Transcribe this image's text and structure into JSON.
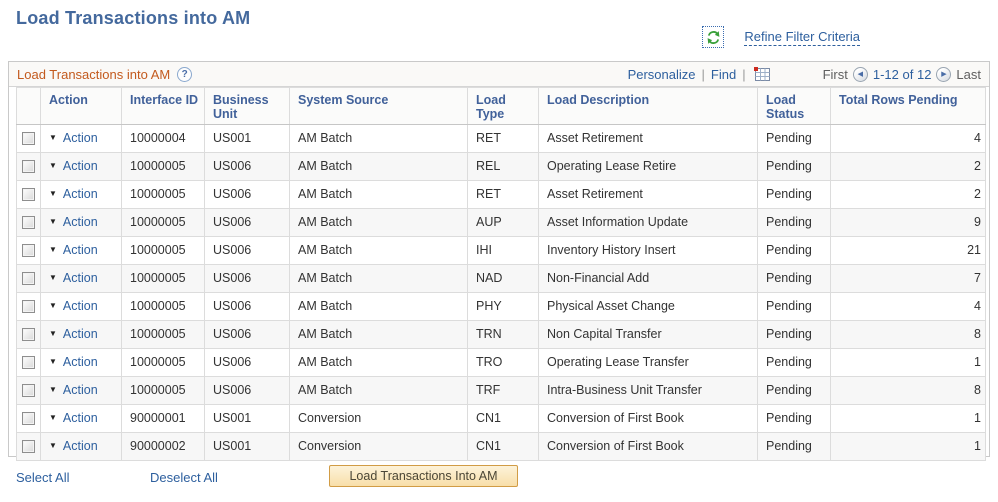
{
  "page": {
    "title": "Load Transactions into AM"
  },
  "toolbar": {
    "refresh_icon": "refresh-icon",
    "refine_link": "Refine Filter Criteria"
  },
  "grid": {
    "title": "Load Transactions into AM",
    "help_icon": "?",
    "personalize_label": "Personalize",
    "find_label": "Find",
    "separator": "|",
    "excel_icon": "download-to-excel-icon",
    "pagination": {
      "first": "First",
      "prev_icon": "previous-page-icon",
      "range": "1-12 of 12",
      "next_icon": "next-page-icon",
      "last": "Last"
    },
    "columns": {
      "action": "Action",
      "interface_id": "Interface ID",
      "business_unit": "Business Unit",
      "system_source": "System Source",
      "load_type": "Load Type",
      "load_description": "Load Description",
      "load_status": "Load Status",
      "total_rows_pending": "Total Rows Pending"
    },
    "action_label": "Action",
    "rows": [
      {
        "interface_id": "10000004",
        "business_unit": "US001",
        "system_source": "AM Batch",
        "load_type": "RET",
        "load_description": "Asset Retirement",
        "load_status": "Pending",
        "total_rows_pending": "4"
      },
      {
        "interface_id": "10000005",
        "business_unit": "US006",
        "system_source": "AM Batch",
        "load_type": "REL",
        "load_description": "Operating Lease Retire",
        "load_status": "Pending",
        "total_rows_pending": "2"
      },
      {
        "interface_id": "10000005",
        "business_unit": "US006",
        "system_source": "AM Batch",
        "load_type": "RET",
        "load_description": "Asset Retirement",
        "load_status": "Pending",
        "total_rows_pending": "2"
      },
      {
        "interface_id": "10000005",
        "business_unit": "US006",
        "system_source": "AM Batch",
        "load_type": "AUP",
        "load_description": "Asset Information Update",
        "load_status": "Pending",
        "total_rows_pending": "9"
      },
      {
        "interface_id": "10000005",
        "business_unit": "US006",
        "system_source": "AM Batch",
        "load_type": "IHI",
        "load_description": "Inventory History Insert",
        "load_status": "Pending",
        "total_rows_pending": "21"
      },
      {
        "interface_id": "10000005",
        "business_unit": "US006",
        "system_source": "AM Batch",
        "load_type": "NAD",
        "load_description": "Non-Financial Add",
        "load_status": "Pending",
        "total_rows_pending": "7"
      },
      {
        "interface_id": "10000005",
        "business_unit": "US006",
        "system_source": "AM Batch",
        "load_type": "PHY",
        "load_description": "Physical Asset Change",
        "load_status": "Pending",
        "total_rows_pending": "4"
      },
      {
        "interface_id": "10000005",
        "business_unit": "US006",
        "system_source": "AM Batch",
        "load_type": "TRN",
        "load_description": "Non Capital Transfer",
        "load_status": "Pending",
        "total_rows_pending": "8"
      },
      {
        "interface_id": "10000005",
        "business_unit": "US006",
        "system_source": "AM Batch",
        "load_type": "TRO",
        "load_description": "Operating Lease Transfer",
        "load_status": "Pending",
        "total_rows_pending": "1"
      },
      {
        "interface_id": "10000005",
        "business_unit": "US006",
        "system_source": "AM Batch",
        "load_type": "TRF",
        "load_description": "Intra-Business Unit Transfer",
        "load_status": "Pending",
        "total_rows_pending": "8"
      },
      {
        "interface_id": "90000001",
        "business_unit": "US001",
        "system_source": "Conversion",
        "load_type": "CN1",
        "load_description": "Conversion of First Book",
        "load_status": "Pending",
        "total_rows_pending": "1"
      },
      {
        "interface_id": "90000002",
        "business_unit": "US001",
        "system_source": "Conversion",
        "load_type": "CN1",
        "load_description": "Conversion of First Book",
        "load_status": "Pending",
        "total_rows_pending": "1"
      }
    ]
  },
  "footer": {
    "select_all": "Select All",
    "deselect_all": "Deselect All",
    "load_button": "Load Transactions Into AM"
  },
  "colors": {
    "title_blue": "#44699d",
    "header_blue": "#41619a",
    "link_blue": "#2d5f9e",
    "groupbox_orange": "#c35a1e",
    "refresh_green": "#3aa03a",
    "button_bg": "#f8dfa9",
    "button_border": "#d19c45",
    "row_stripe": "#f7f7f7",
    "grid_border": "#dcdcdc"
  }
}
